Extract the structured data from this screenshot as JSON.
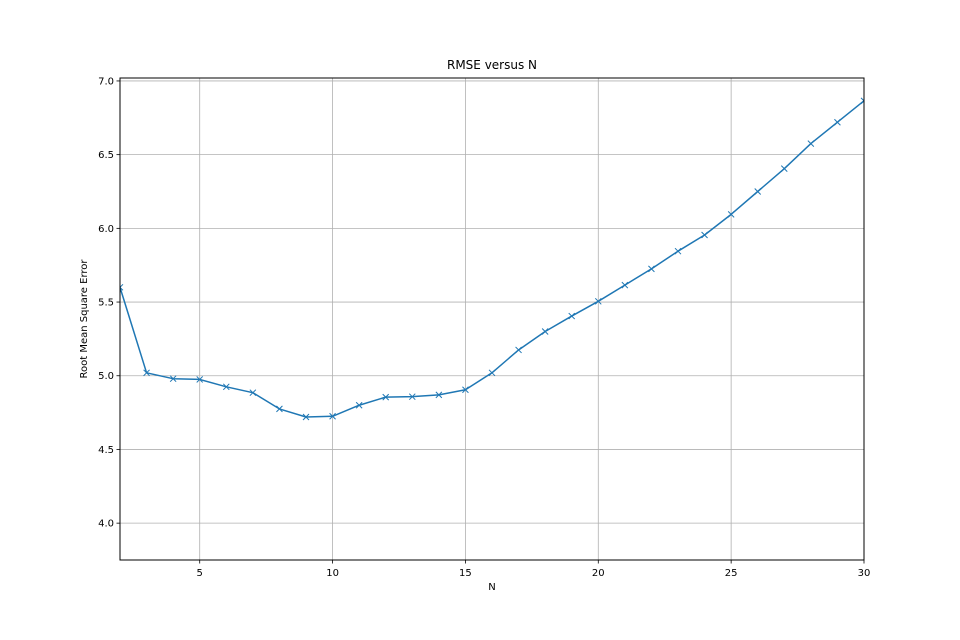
{
  "chart_data": {
    "type": "line",
    "title": "RMSE versus N",
    "xlabel": "N",
    "ylabel": "Root Mean Square Error",
    "xlim": [
      2,
      30
    ],
    "ylim": [
      3.75,
      7.02
    ],
    "grid": true,
    "x_ticks": [
      5,
      10,
      15,
      20,
      25,
      30
    ],
    "y_ticks": [
      4.0,
      4.5,
      5.0,
      5.5,
      6.0,
      6.5,
      7.0
    ],
    "x_tick_labels": [
      "5",
      "10",
      "15",
      "20",
      "25",
      "30"
    ],
    "y_tick_labels": [
      "4.0",
      "4.5",
      "5.0",
      "5.5",
      "6.0",
      "6.5",
      "7.0"
    ],
    "marker": "x",
    "colors": {
      "line": "#1f77b4",
      "grid": "#b0b0b0"
    },
    "series": [
      {
        "x": [
          2,
          3,
          4,
          5,
          6,
          7,
          8,
          9,
          10,
          11,
          12,
          13,
          14,
          15,
          16,
          17,
          18,
          19,
          20,
          21,
          22,
          23,
          24,
          25,
          26,
          27,
          28,
          29,
          30
        ],
        "values": [
          5.6,
          5.02,
          4.98,
          4.975,
          4.925,
          4.885,
          4.775,
          4.72,
          4.725,
          4.8,
          4.855,
          4.858,
          4.87,
          4.905,
          5.02,
          5.175,
          5.3,
          5.405,
          5.505,
          5.615,
          5.725,
          5.845,
          5.955,
          6.095,
          6.25,
          6.405,
          6.575,
          6.72,
          6.865
        ]
      }
    ]
  }
}
